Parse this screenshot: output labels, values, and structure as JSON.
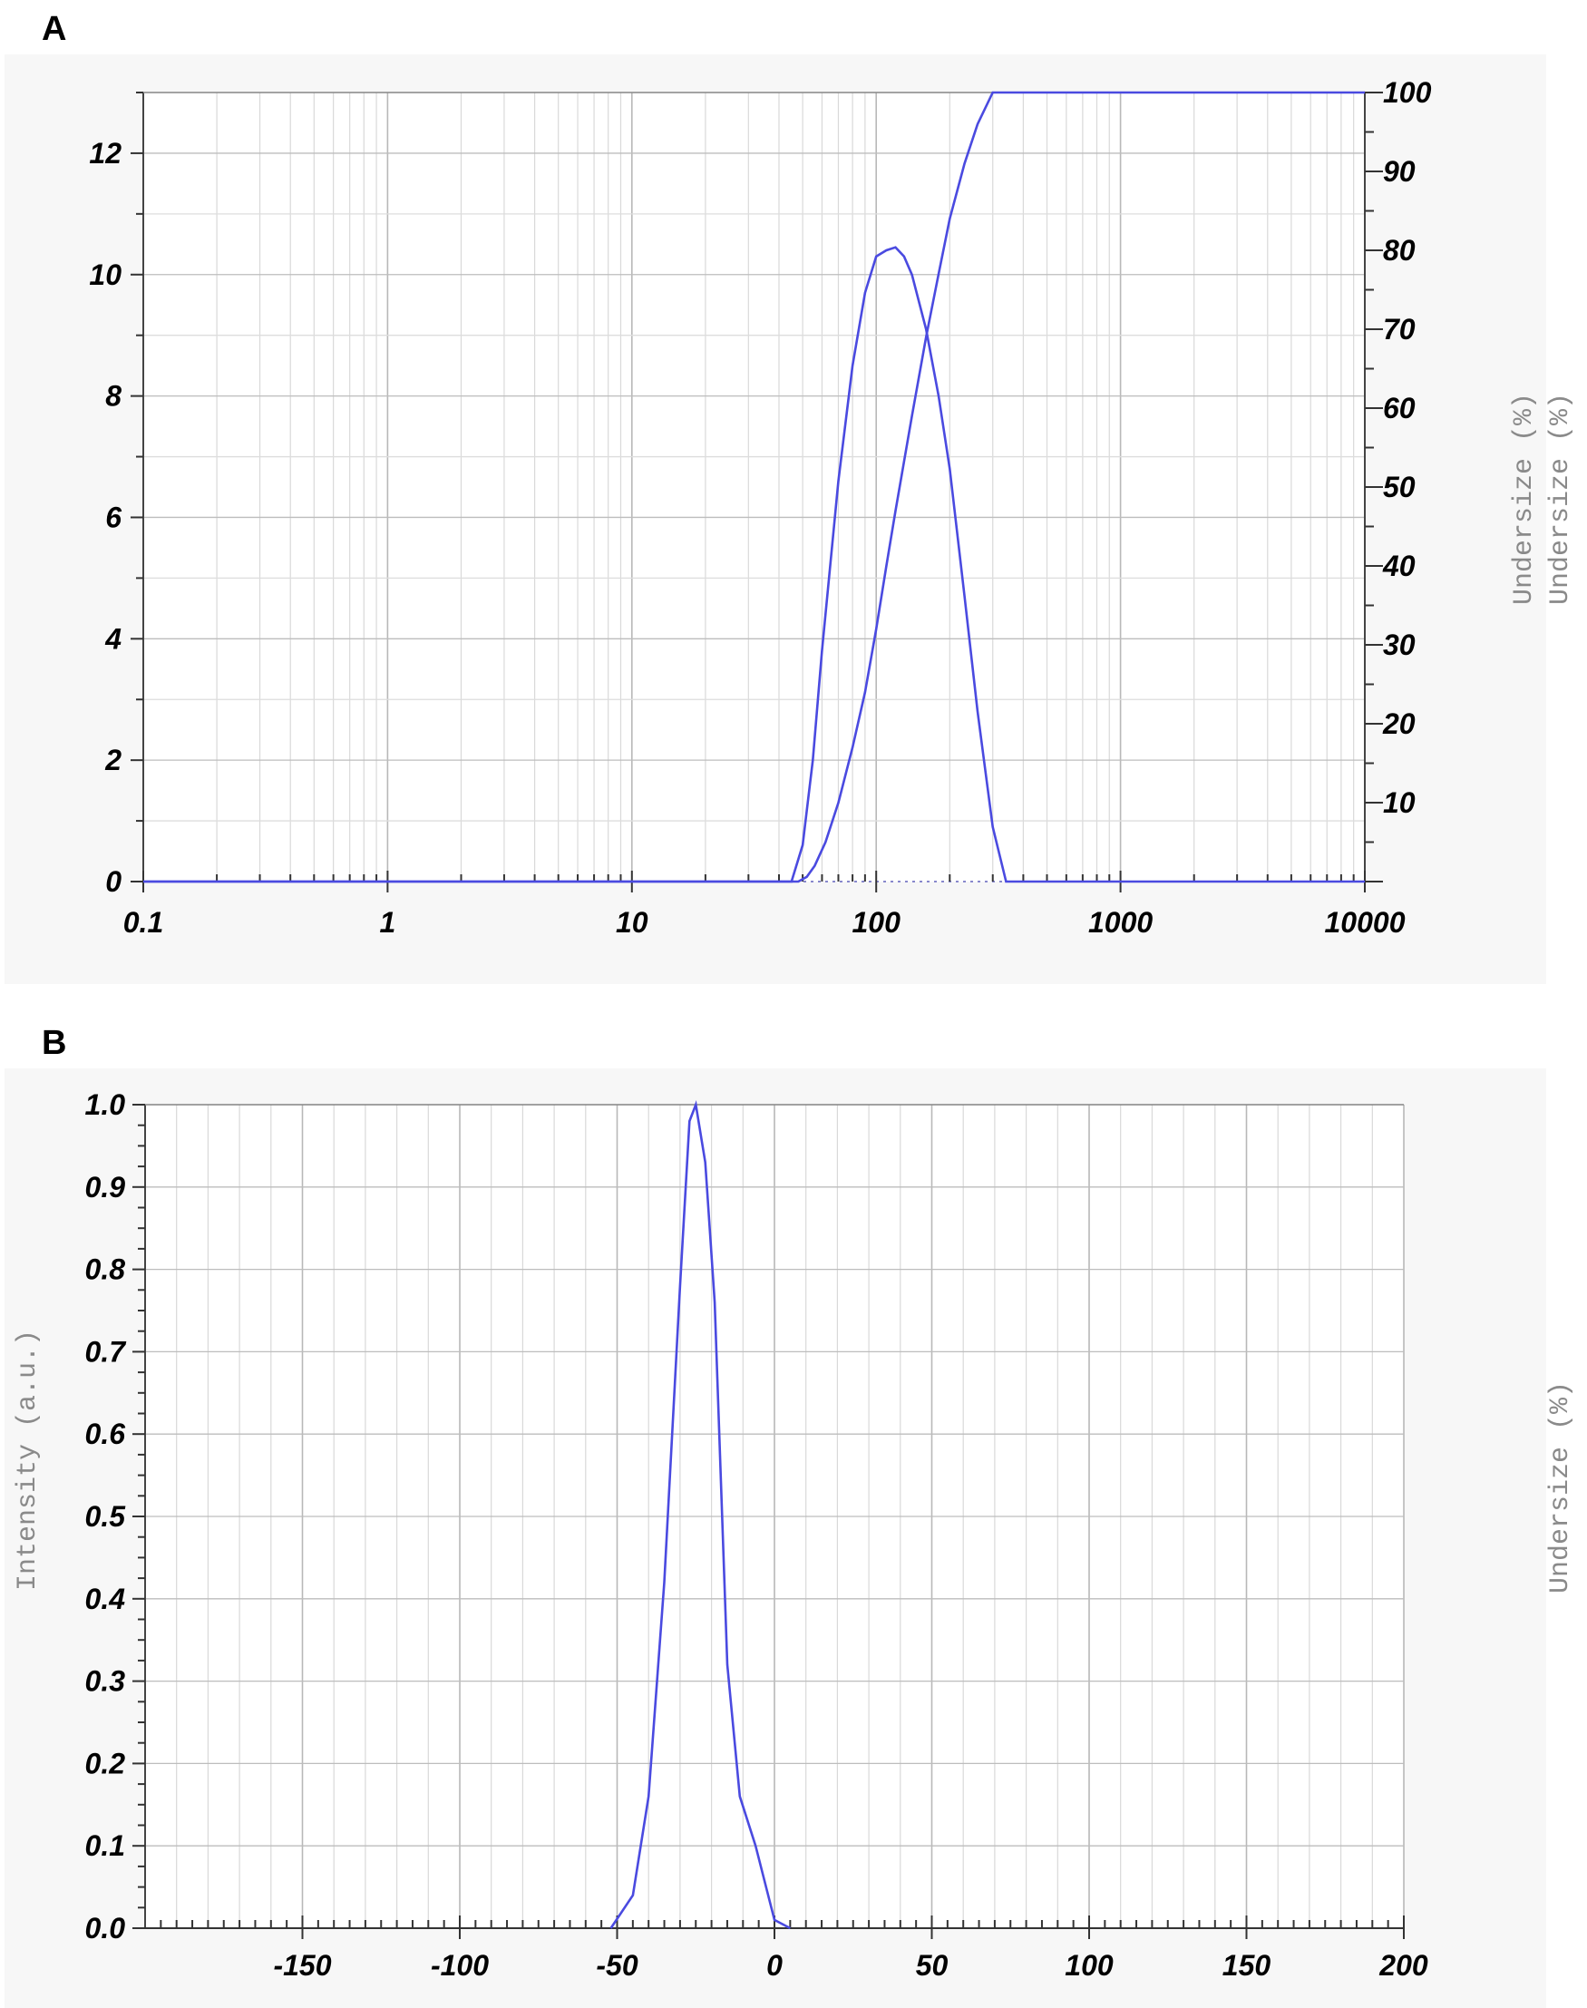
{
  "panels": [
    "A",
    "B"
  ],
  "chart_data": [
    {
      "panel": "A",
      "type": "line",
      "x_scale": "log",
      "xlim": [
        0.1,
        10000
      ],
      "ylim": [
        0,
        13
      ],
      "y2lim": [
        0,
        100
      ],
      "xticks": [
        "0.1",
        "1",
        "10",
        "100",
        "1000",
        "10000"
      ],
      "yticks": [
        "0",
        "2",
        "4",
        "6",
        "8",
        "10",
        "12"
      ],
      "y2ticks": [
        "10",
        "20",
        "30",
        "40",
        "50",
        "60",
        "70",
        "80",
        "90",
        "100"
      ],
      "xlabel": "",
      "ylabel": "",
      "y2labels": [
        "Undersize (%)",
        "Undersize (%)"
      ],
      "grid": true,
      "series": [
        {
          "axis": "left",
          "color": "#4a4ae0",
          "x": [
            0.1,
            0.3,
            45,
            50,
            55,
            60,
            70,
            80,
            90,
            100,
            110,
            120,
            130,
            140,
            160,
            180,
            200,
            230,
            260,
            300,
            340,
            10000
          ],
          "y": [
            0,
            0,
            0,
            0.6,
            2.0,
            3.8,
            6.6,
            8.5,
            9.7,
            10.3,
            10.4,
            10.45,
            10.3,
            10.0,
            9.1,
            8.0,
            6.8,
            4.7,
            2.8,
            0.9,
            0,
            0
          ]
        },
        {
          "axis": "right",
          "color": "#4a4ae0",
          "x": [
            0.1,
            0.3,
            48,
            52,
            56,
            62,
            70,
            80,
            90,
            100,
            110,
            120,
            140,
            160,
            180,
            200,
            230,
            260,
            300,
            10000
          ],
          "y": [
            0,
            0,
            0,
            0.6,
            2.0,
            5.0,
            10.0,
            17.0,
            24.0,
            32.0,
            40.0,
            47.0,
            59.0,
            69.0,
            77.0,
            84.0,
            91.0,
            96.0,
            100,
            100
          ]
        }
      ]
    },
    {
      "panel": "B",
      "type": "line",
      "xlim": [
        -200,
        200
      ],
      "ylim": [
        0,
        1
      ],
      "xticks": [
        "-150",
        "-100",
        "-50",
        "0",
        "50",
        "100",
        "150",
        "200"
      ],
      "yticks": [
        "0.0",
        "0.1",
        "0.2",
        "0.3",
        "0.4",
        "0.5",
        "0.6",
        "0.7",
        "0.8",
        "0.9",
        "1.0"
      ],
      "xlabel": "",
      "ylabel": "Intensity (a.u.)",
      "y2labels": [
        "Undersize (%)"
      ],
      "grid": true,
      "series": [
        {
          "axis": "left",
          "color": "#4a4ae0",
          "x": [
            -52,
            -45,
            -40,
            -35,
            -30,
            -27,
            -25,
            -22,
            -19,
            -15,
            -11,
            -6,
            0,
            5
          ],
          "y": [
            0,
            0.04,
            0.16,
            0.42,
            0.78,
            0.98,
            1.0,
            0.93,
            0.76,
            0.32,
            0.16,
            0.1,
            0.01,
            0
          ]
        }
      ]
    }
  ]
}
